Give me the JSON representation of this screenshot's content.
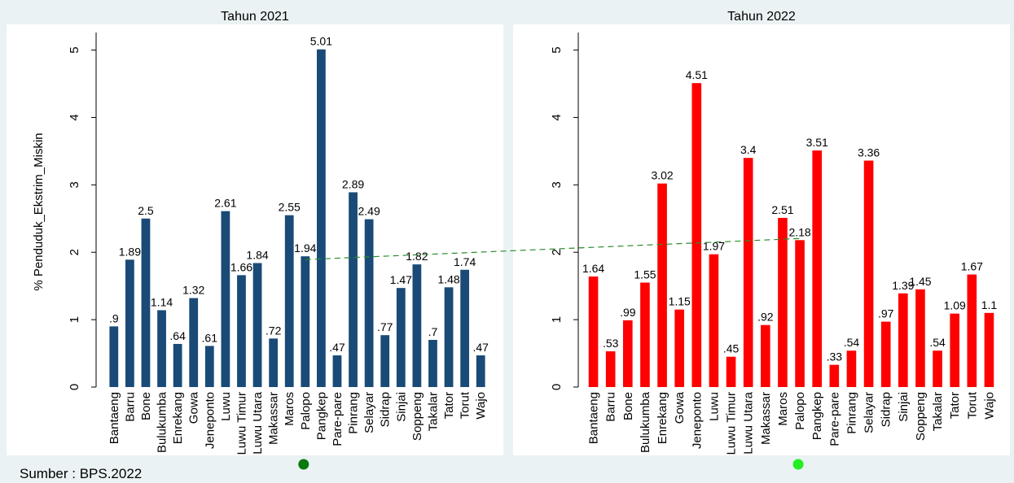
{
  "ylabel": "% Penduduk_Ekstrim_Miskin",
  "source": "Sumber : BPS.2022",
  "colors": {
    "background": "#eaf2f3",
    "panel": "#ffffff",
    "bar_2021": "#1a4a77",
    "bar_2022": "#ff0000",
    "trend_line": "#2e8b2e",
    "dot_2021": "#0a7a0a",
    "dot_2022": "#22ee22"
  },
  "chart_data": [
    {
      "type": "bar",
      "title": "Tahun 2021",
      "ylabel": "% Penduduk_Ekstrim_Miskin",
      "ylim": [
        0,
        5.2
      ],
      "yticks": [
        "0",
        "1",
        "2",
        "3",
        "4",
        "5"
      ],
      "grid": false,
      "categories": [
        "Bantaeng",
        "Barru",
        "Bone",
        "Bulukumba",
        "Enrekang",
        "Gowa",
        "Jeneponto",
        "Luwu",
        "Luwu Timur",
        "Luwu Utara",
        "Makassar",
        "Maros",
        "Palopo",
        "Pangkep",
        "Pare-pare",
        "Pinrang",
        "Selayar",
        "Sidrap",
        "Sinjai",
        "Soppeng",
        "Takalar",
        "Tator",
        "Torut",
        "Wajo"
      ],
      "values": [
        0.9,
        1.89,
        2.5,
        1.14,
        0.64,
        1.32,
        0.61,
        2.61,
        1.66,
        1.84,
        0.72,
        2.55,
        1.94,
        5.01,
        0.47,
        2.89,
        2.49,
        0.77,
        1.47,
        1.82,
        0.7,
        1.48,
        1.74,
        0.47
      ],
      "value_labels": [
        ".9",
        "1.89",
        "2.5",
        "1.14",
        ".64",
        "1.32",
        ".61",
        "2.61",
        "1.66",
        "1.84",
        ".72",
        "2.55",
        "1.94",
        "5.01",
        ".47",
        "2.89",
        "2.49",
        ".77",
        "1.47",
        "1.82",
        ".7",
        "1.48",
        "1.74",
        ".47"
      ]
    },
    {
      "type": "bar",
      "title": "Tahun 2022",
      "ylim": [
        0,
        5.2
      ],
      "yticks": [
        "0",
        "1",
        "2",
        "3",
        "4",
        "5"
      ],
      "grid": false,
      "categories": [
        "Bantaeng",
        "Barru",
        "Bone",
        "Bulukumba",
        "Enrekang",
        "Gowa",
        "Jeneponto",
        "Luwu",
        "Luwu Timur",
        "Luwu Utara",
        "Makassar",
        "Maros",
        "Palopo",
        "Pangkep",
        "Pare-pare",
        "Pinrang",
        "Selayar",
        "Sidrap",
        "Sinjai",
        "Soppeng",
        "Takalar",
        "Tator",
        "Torut",
        "Wajo"
      ],
      "values": [
        1.64,
        0.53,
        0.99,
        1.55,
        3.02,
        1.15,
        4.51,
        1.97,
        0.45,
        3.4,
        0.92,
        2.51,
        2.18,
        3.51,
        0.33,
        0.54,
        3.36,
        0.97,
        1.39,
        1.45,
        0.54,
        1.09,
        1.67,
        1.1
      ],
      "value_labels": [
        "1.64",
        ".53",
        ".99",
        "1.55",
        "3.02",
        "1.15",
        "4.51",
        "1.97",
        ".45",
        "3.4",
        ".92",
        "2.51",
        "2.18",
        "3.51",
        ".33",
        ".54",
        "3.36",
        ".97",
        "1.39",
        "1.45",
        ".54",
        "1.09",
        "1.67",
        "1.1"
      ]
    }
  ]
}
